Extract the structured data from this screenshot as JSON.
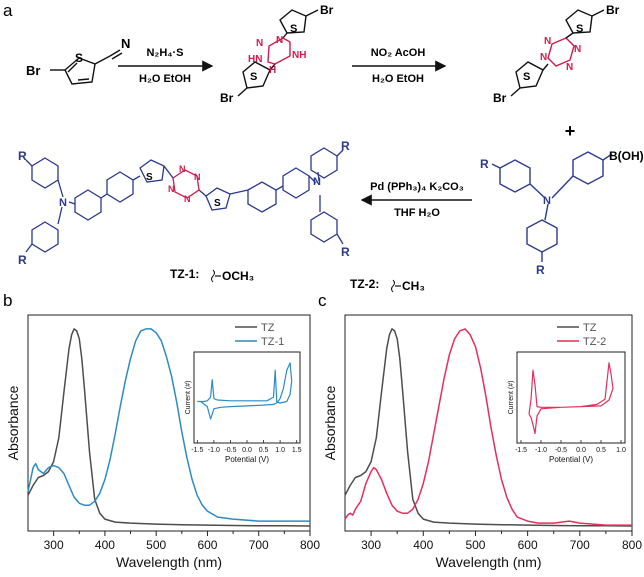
{
  "panel_labels": {
    "a": "a",
    "b": "b",
    "c": "c"
  },
  "scheme": {
    "start_material": {
      "atoms": [
        "Br",
        "S",
        "N"
      ]
    },
    "step1": {
      "reagents": "N₂H₄·S",
      "conditions": "H₂O EtOH"
    },
    "intermediate": {
      "atoms": [
        "Br",
        "S",
        "N",
        "NH",
        "HN",
        "H",
        "N",
        "S",
        "Br"
      ]
    },
    "step2": {
      "reagents": "NO₂ AcOH",
      "conditions": "H₂O EtOH"
    },
    "tetrazine": {
      "atoms": [
        "Br",
        "S",
        "N",
        "N",
        "N",
        "N",
        "S",
        "Br"
      ]
    },
    "plus": "+",
    "boronic_acid": {
      "label": "B(OH)₂",
      "r_labels": [
        "R",
        "R"
      ],
      "n": "N"
    },
    "step3": {
      "reagents": "Pd (PPh₃)₄ K₂CO₃",
      "conditions": "THF H₂O"
    },
    "product": {
      "r_labels": [
        "R",
        "R",
        "R",
        "R"
      ],
      "n_labels": [
        "N",
        "N"
      ],
      "s_labels": [
        "S",
        "S"
      ],
      "tz_labels": [
        "N",
        "N",
        "N",
        "N"
      ]
    },
    "tz1_label": "TZ-1:",
    "tz1_group": "OCH₃",
    "tz2_label": "TZ-2:",
    "tz2_group": "CH₃"
  },
  "colors": {
    "tz": "#4d4d4d",
    "tz1": "#2b8cc4",
    "tz2": "#e62e5c",
    "scheme_blue": "#2a3a8c",
    "scheme_red": "#d01c4b"
  },
  "chart_data": [
    {
      "type": "line",
      "panel": "b",
      "xlabel": "Wavelength (nm)",
      "ylabel": "Absorbance",
      "xlim": [
        250,
        800
      ],
      "xticks": [
        300,
        400,
        500,
        600,
        700,
        800
      ],
      "legend_position": "top-right",
      "series": [
        {
          "name": "TZ",
          "color": "#4d4d4d",
          "x": [
            250,
            260,
            270,
            280,
            290,
            300,
            310,
            320,
            330,
            335,
            340,
            345,
            350,
            355,
            360,
            370,
            380,
            390,
            400,
            420,
            450,
            500,
            550,
            600,
            650,
            700,
            750,
            800
          ],
          "y": [
            0.16,
            0.21,
            0.25,
            0.26,
            0.28,
            0.33,
            0.45,
            0.68,
            0.9,
            0.97,
            1.0,
            0.99,
            0.95,
            0.85,
            0.7,
            0.38,
            0.14,
            0.07,
            0.04,
            0.025,
            0.02,
            0.015,
            0.012,
            0.01,
            0.008,
            0.006,
            0.006,
            0.005
          ]
        },
        {
          "name": "TZ-1",
          "color": "#2b8cc4",
          "x": [
            250,
            255,
            260,
            265,
            270,
            280,
            290,
            300,
            310,
            320,
            330,
            340,
            350,
            360,
            370,
            380,
            390,
            400,
            410,
            420,
            430,
            440,
            450,
            460,
            470,
            480,
            490,
            500,
            510,
            520,
            530,
            540,
            550,
            560,
            570,
            580,
            590,
            600,
            620,
            650,
            700,
            750,
            800
          ],
          "y": [
            0.18,
            0.24,
            0.3,
            0.32,
            0.29,
            0.27,
            0.3,
            0.31,
            0.3,
            0.27,
            0.21,
            0.15,
            0.12,
            0.11,
            0.11,
            0.13,
            0.17,
            0.24,
            0.34,
            0.47,
            0.61,
            0.74,
            0.85,
            0.94,
            0.99,
            1.0,
            1.0,
            0.98,
            0.94,
            0.86,
            0.76,
            0.63,
            0.48,
            0.35,
            0.24,
            0.16,
            0.11,
            0.08,
            0.05,
            0.04,
            0.03,
            0.03,
            0.03
          ]
        }
      ],
      "inset": {
        "type": "line",
        "xlabel": "Potential (V)",
        "ylabel": "Current (#)",
        "xlim": [
          -1.6,
          1.6
        ],
        "xtick_labels": [
          "-1.5",
          "-1.0",
          "-0.5",
          "0.0",
          "0.5",
          "1.0",
          "1.5"
        ],
        "series": [
          {
            "name": "TZ-1",
            "color": "#2b8cc4",
            "x": [
              -1.5,
              -1.4,
              -1.2,
              -1.1,
              -1.0,
              -0.8,
              -0.5,
              0.0,
              0.5,
              0.8,
              0.9,
              1.0,
              1.1,
              1.2,
              1.3,
              1.35,
              1.3,
              1.2,
              1.0,
              0.9,
              0.85,
              0.8,
              0.6,
              0.0,
              -0.5,
              -0.9,
              -1.0,
              -1.05,
              -1.1,
              -1.2,
              -1.3,
              -1.4,
              -1.5
            ],
            "y": [
              0.02,
              0.02,
              -0.05,
              -0.22,
              -0.08,
              -0.06,
              -0.05,
              -0.04,
              -0.03,
              -0.02,
              0.0,
              0.06,
              0.2,
              0.45,
              0.55,
              0.3,
              0.12,
              0.02,
              0.0,
              0.01,
              0.45,
              0.08,
              0.03,
              0.03,
              0.03,
              0.04,
              0.06,
              0.32,
              0.08,
              0.03,
              0.02,
              0.02,
              0.02
            ]
          }
        ]
      }
    },
    {
      "type": "line",
      "panel": "c",
      "xlabel": "Wavelength (nm)",
      "ylabel": "Absorbance",
      "xlim": [
        250,
        800
      ],
      "xticks": [
        300,
        400,
        500,
        600,
        700,
        800
      ],
      "legend_position": "top-right",
      "series": [
        {
          "name": "TZ",
          "color": "#4d4d4d",
          "x": [
            250,
            260,
            270,
            280,
            290,
            300,
            310,
            320,
            330,
            335,
            340,
            345,
            350,
            355,
            360,
            370,
            380,
            390,
            400,
            420,
            450,
            500,
            550,
            600,
            650,
            700,
            750,
            800
          ],
          "y": [
            0.16,
            0.21,
            0.25,
            0.26,
            0.28,
            0.33,
            0.45,
            0.68,
            0.9,
            0.97,
            1.0,
            0.99,
            0.95,
            0.85,
            0.7,
            0.38,
            0.14,
            0.07,
            0.04,
            0.025,
            0.02,
            0.015,
            0.012,
            0.01,
            0.008,
            0.006,
            0.006,
            0.005
          ]
        },
        {
          "name": "TZ-2",
          "color": "#e62e5c",
          "x": [
            250,
            255,
            260,
            265,
            270,
            280,
            290,
            300,
            305,
            310,
            320,
            330,
            340,
            350,
            360,
            370,
            380,
            390,
            400,
            410,
            420,
            430,
            440,
            450,
            460,
            470,
            480,
            490,
            500,
            510,
            520,
            530,
            540,
            550,
            560,
            570,
            580,
            600,
            620,
            650,
            680,
            700,
            750,
            800
          ],
          "y": [
            0.04,
            0.06,
            0.07,
            0.06,
            0.09,
            0.13,
            0.22,
            0.28,
            0.3,
            0.29,
            0.24,
            0.17,
            0.11,
            0.08,
            0.07,
            0.07,
            0.09,
            0.14,
            0.22,
            0.33,
            0.47,
            0.61,
            0.75,
            0.87,
            0.95,
            0.99,
            1.0,
            0.97,
            0.91,
            0.8,
            0.66,
            0.5,
            0.36,
            0.24,
            0.15,
            0.09,
            0.05,
            0.03,
            0.02,
            0.02,
            0.03,
            0.02,
            0.01,
            0.01
          ]
        }
      ],
      "inset": {
        "type": "line",
        "xlabel": "Potential (V)",
        "ylabel": "Current (#)",
        "xlim": [
          -1.6,
          1.1
        ],
        "xtick_labels": [
          "-1.5",
          "-1.0",
          "-0.5",
          "0.0",
          "0.5",
          "1.0"
        ],
        "series": [
          {
            "name": "TZ-2",
            "color": "#e62e5c",
            "x": [
              -1.3,
              -1.25,
              -1.2,
              -1.15,
              -1.1,
              -1.0,
              -0.5,
              0.0,
              0.4,
              0.6,
              0.65,
              0.7,
              0.75,
              0.8,
              0.75,
              0.7,
              0.65,
              0.6,
              0.5,
              0.0,
              -0.5,
              -1.0,
              -1.1,
              -1.15,
              -1.2,
              -1.25,
              -1.3
            ],
            "y": [
              -0.15,
              -0.2,
              -0.3,
              -0.42,
              -0.18,
              -0.08,
              -0.06,
              -0.05,
              -0.02,
              0.05,
              0.3,
              0.55,
              0.4,
              0.2,
              0.12,
              0.04,
              0.02,
              0.0,
              -0.04,
              -0.05,
              -0.06,
              -0.06,
              -0.05,
              0.25,
              0.45,
              0.05,
              -0.15
            ]
          }
        ]
      }
    }
  ]
}
